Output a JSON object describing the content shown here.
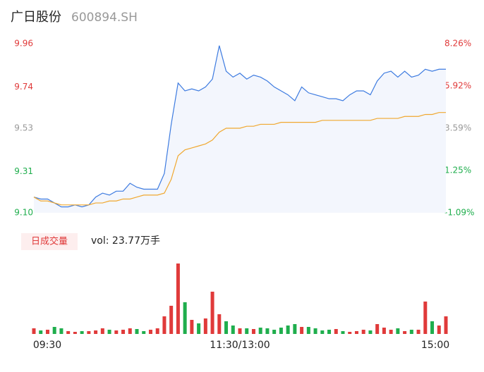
{
  "chart_data": [
    {
      "type": "line",
      "title": "广日股份",
      "subtitle": "600894.SH",
      "xlim": [
        0,
        60
      ],
      "series": [
        {
          "color": "#3d7be0",
          "values": [
            9.18,
            9.17,
            9.17,
            9.15,
            9.13,
            9.13,
            9.14,
            9.13,
            9.14,
            9.18,
            9.2,
            9.19,
            9.21,
            9.21,
            9.25,
            9.23,
            9.22,
            9.22,
            9.22,
            9.3,
            9.55,
            9.76,
            9.72,
            9.73,
            9.72,
            9.74,
            9.78,
            9.95,
            9.82,
            9.79,
            9.81,
            9.78,
            9.8,
            9.79,
            9.77,
            9.74,
            9.72,
            9.7,
            9.67,
            9.74,
            9.71,
            9.7,
            9.69,
            9.68,
            9.68,
            9.67,
            9.7,
            9.72,
            9.72,
            9.7,
            9.77,
            9.81,
            9.82,
            9.79,
            9.82,
            9.79,
            9.8,
            9.83,
            9.82,
            9.83,
            9.83
          ]
        },
        {
          "color": "#f0a830",
          "values": [
            9.18,
            9.16,
            9.16,
            9.15,
            9.14,
            9.14,
            9.14,
            9.14,
            9.14,
            9.15,
            9.15,
            9.16,
            9.16,
            9.17,
            9.17,
            9.18,
            9.19,
            9.19,
            9.19,
            9.2,
            9.27,
            9.39,
            9.42,
            9.43,
            9.44,
            9.45,
            9.47,
            9.51,
            9.53,
            9.53,
            9.53,
            9.54,
            9.54,
            9.55,
            9.55,
            9.55,
            9.56,
            9.56,
            9.56,
            9.56,
            9.56,
            9.56,
            9.57,
            9.57,
            9.57,
            9.57,
            9.57,
            9.57,
            9.57,
            9.57,
            9.58,
            9.58,
            9.58,
            9.58,
            9.59,
            9.59,
            9.59,
            9.6,
            9.6,
            9.61,
            9.61
          ]
        }
      ],
      "area_fill": "#f3f6fd",
      "ylim": [
        9.1,
        9.96
      ],
      "yticks": [
        9.96,
        9.74,
        9.53,
        9.31,
        {
          "value": 9.1,
          "label": "9.10"
        }
      ],
      "y2lim": [
        -1.09,
        8.26
      ],
      "y2ticks": [
        {
          "value": 8.26,
          "label": "8.26%"
        },
        {
          "value": 5.92,
          "label": "5.92%"
        },
        {
          "value": 3.59,
          "label": "3.59%"
        },
        {
          "value": 1.25,
          "label": "1.25%"
        },
        {
          "value": -1.09,
          "label": "-1.09%"
        }
      ],
      "ytick_colors": [
        "#e03a3a",
        "#e03a3a",
        "#999999",
        "#1fae4d",
        "#1fae4d"
      ]
    },
    {
      "type": "bar",
      "title": "日成交量",
      "annotation": "vol: 23.77万手",
      "xlim": [
        0,
        60
      ],
      "values": [
        8,
        5,
        6,
        10,
        8,
        4,
        3,
        4,
        4,
        5,
        8,
        6,
        5,
        6,
        8,
        7,
        4,
        6,
        8,
        25,
        40,
        100,
        45,
        20,
        15,
        22,
        60,
        28,
        18,
        12,
        8,
        8,
        7,
        9,
        8,
        6,
        9,
        12,
        14,
        10,
        10,
        8,
        5,
        6,
        7,
        4,
        3,
        4,
        6,
        5,
        14,
        9,
        6,
        8,
        4,
        6,
        6,
        46,
        18,
        12,
        25
      ],
      "ylim": [
        0,
        105
      ],
      "up_color": "#e03a3a",
      "down_color": "#1fae4d",
      "xticks": [
        {
          "value": 0,
          "label": "09:30"
        },
        {
          "value": 30,
          "label": "11:30/13:00"
        },
        {
          "value": 60,
          "label": "15:00"
        }
      ]
    }
  ]
}
